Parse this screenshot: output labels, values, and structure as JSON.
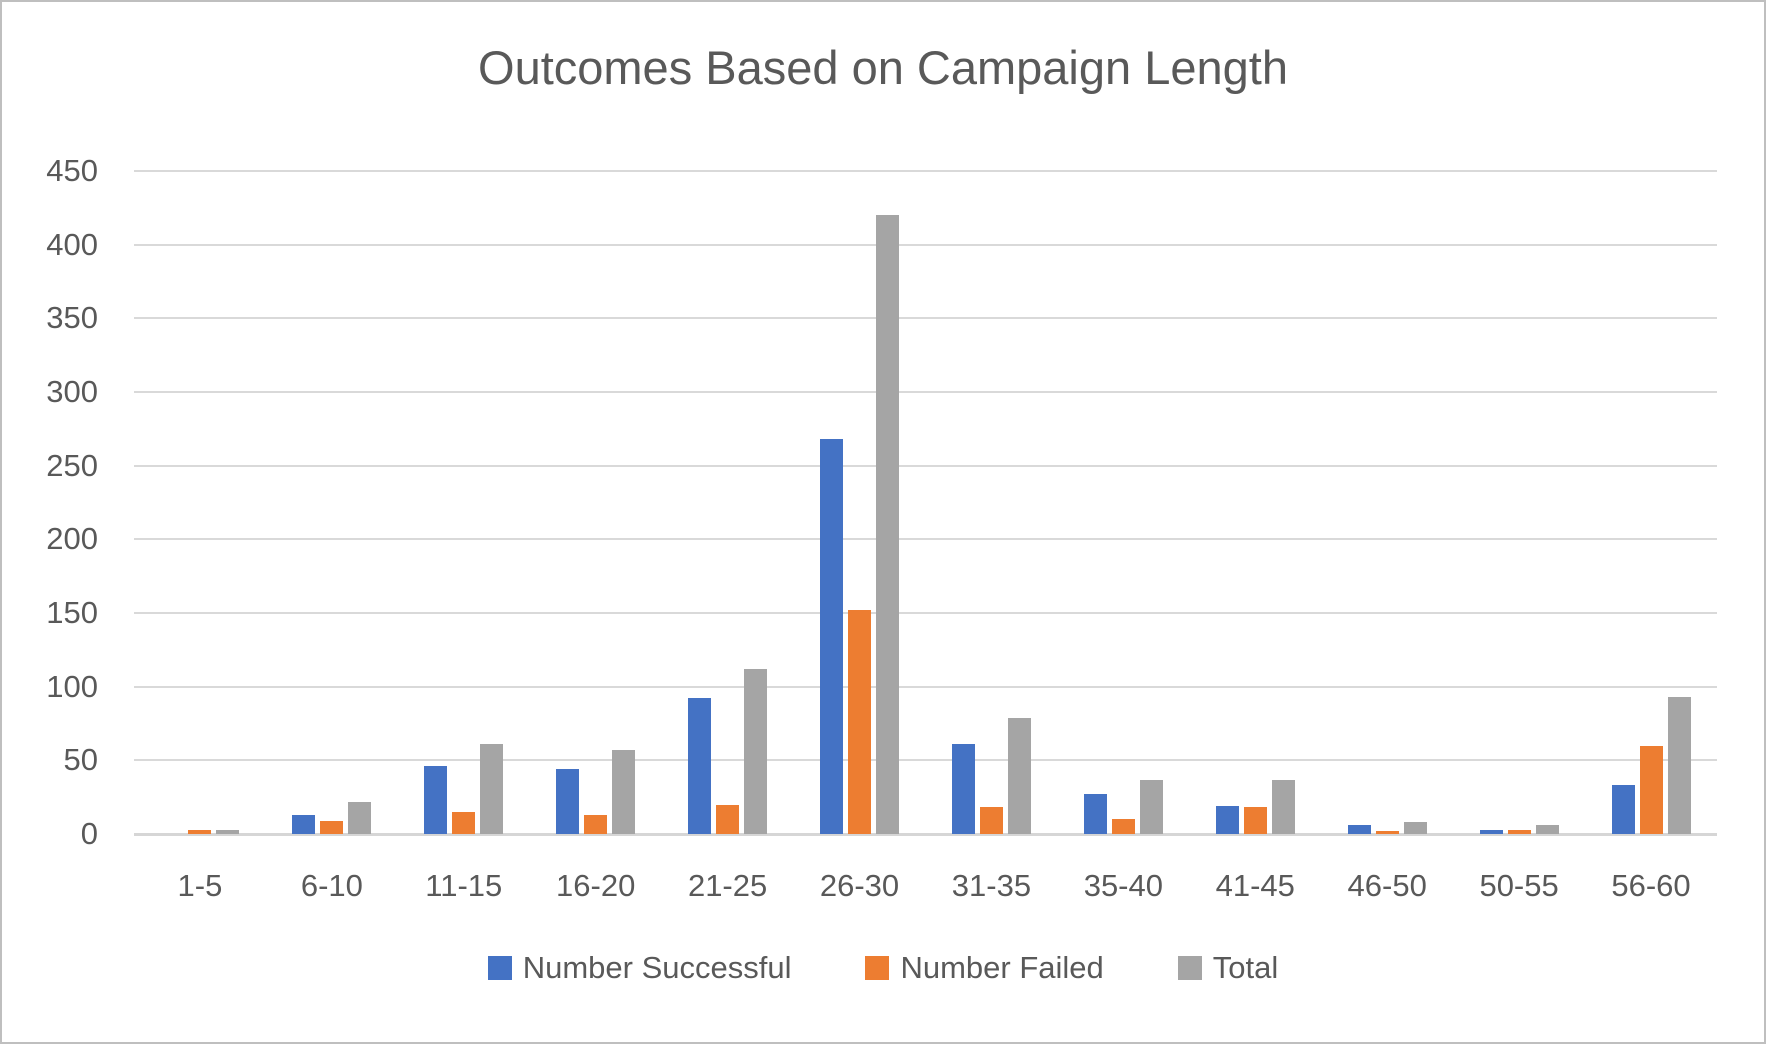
{
  "chart_data": {
    "type": "bar",
    "title": "Outcomes Based on Campaign Length",
    "categories": [
      "1-5",
      "6-10",
      "11-15",
      "16-20",
      "21-25",
      "26-30",
      "31-35",
      "35-40",
      "41-45",
      "46-50",
      "50-55",
      "56-60"
    ],
    "series": [
      {
        "name": "Number Successful",
        "color": "#4472C4",
        "values": [
          0,
          13,
          46,
          44,
          92,
          268,
          61,
          27,
          19,
          6,
          3,
          33
        ]
      },
      {
        "name": "Number Failed",
        "color": "#ED7D31",
        "values": [
          3,
          9,
          15,
          13,
          20,
          152,
          18,
          10,
          18,
          2,
          3,
          60
        ]
      },
      {
        "name": "Total",
        "color": "#A5A5A5",
        "values": [
          3,
          22,
          61,
          57,
          112,
          420,
          79,
          37,
          37,
          8,
          6,
          93
        ]
      }
    ],
    "xlabel": "",
    "ylabel": "",
    "ylim": [
      0,
      450
    ],
    "yticks": [
      0,
      50,
      100,
      150,
      200,
      250,
      300,
      350,
      400,
      450
    ],
    "grid": true,
    "legend_position": "bottom"
  },
  "colors": {
    "grid": "#D9D9D9",
    "axis_text": "#595959",
    "title_text": "#595959",
    "frame_border": "#BFBFBF",
    "background": "#FFFFFF"
  }
}
